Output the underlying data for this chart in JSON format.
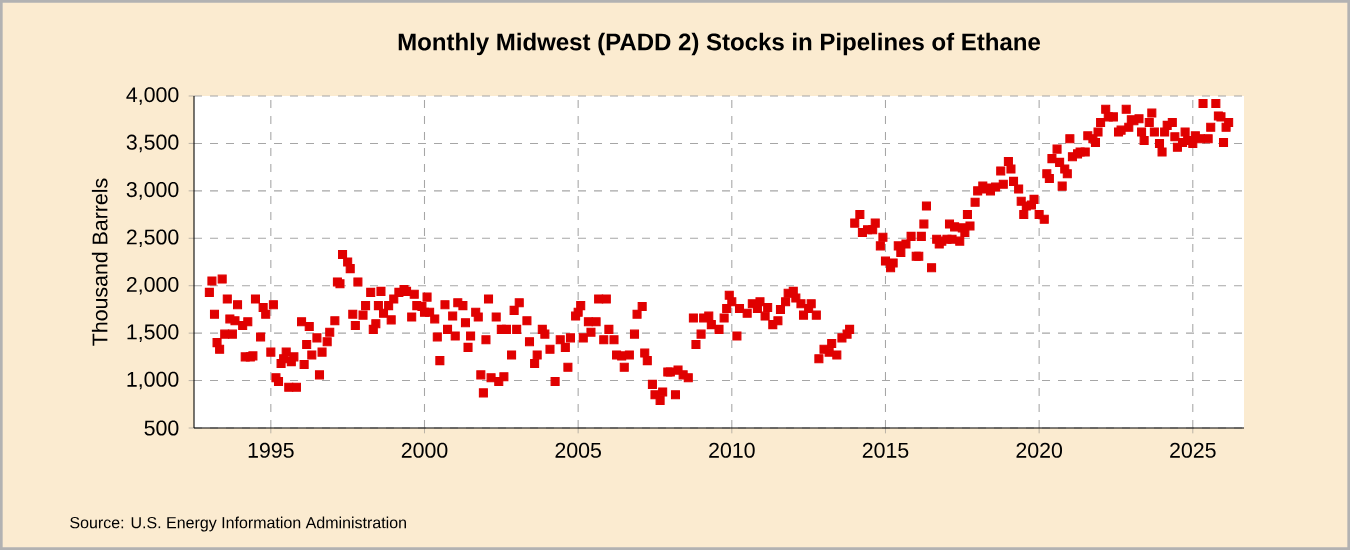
{
  "chart_data": {
    "type": "scatter",
    "title": "Monthly Midwest (PADD 2) Stocks in Pipelines of Ethane",
    "ylabel": "Thousand Barrels",
    "annotations": [
      "Source: U.S. Energy Information Administration"
    ],
    "marker": "square",
    "grid": true,
    "xlim": [
      "1992-07",
      "2026-09"
    ],
    "xticks": [
      "1995",
      "2000",
      "2005",
      "2010",
      "2015",
      "2020",
      "2025"
    ],
    "ylim": [
      500,
      4000
    ],
    "yticks": [
      {
        "value": 500,
        "label": "500"
      },
      {
        "value": 1000,
        "label": "1,000"
      },
      {
        "value": 1500,
        "label": "1,500"
      },
      {
        "value": 2000,
        "label": "2,000"
      },
      {
        "value": 2500,
        "label": "2,500"
      },
      {
        "value": 3000,
        "label": "3,000"
      },
      {
        "value": 3500,
        "label": "3,500"
      },
      {
        "value": 4000,
        "label": "4,000"
      }
    ],
    "series": [
      {
        "color": "#e00000",
        "x": [
          "1993-01",
          "1993-02",
          "1993-03",
          "1993-04",
          "1993-05",
          "1993-06",
          "1993-07",
          "1993-08",
          "1993-09",
          "1993-10",
          "1993-11",
          "1993-12",
          "1994-02",
          "1994-03",
          "1994-04",
          "1994-05",
          "1994-06",
          "1994-07",
          "1994-09",
          "1994-10",
          "1994-11",
          "1995-01",
          "1995-02",
          "1995-03",
          "1995-04",
          "1995-05",
          "1995-06",
          "1995-07",
          "1995-08",
          "1995-09",
          "1995-10",
          "1995-11",
          "1996-01",
          "1996-02",
          "1996-03",
          "1996-04",
          "1996-05",
          "1996-07",
          "1996-08",
          "1996-09",
          "1996-11",
          "1996-12",
          "1997-02",
          "1997-03",
          "1997-04",
          "1997-05",
          "1997-07",
          "1997-08",
          "1997-09",
          "1997-10",
          "1997-11",
          "1998-01",
          "1998-02",
          "1998-04",
          "1998-05",
          "1998-06",
          "1998-07",
          "1998-08",
          "1998-09",
          "1998-11",
          "1998-12",
          "1999-01",
          "1999-03",
          "1999-05",
          "1999-06",
          "1999-08",
          "1999-09",
          "1999-10",
          "1999-12",
          "2000-01",
          "2000-02",
          "2000-03",
          "2000-05",
          "2000-06",
          "2000-07",
          "2000-09",
          "2000-10",
          "2000-12",
          "2001-01",
          "2001-02",
          "2001-04",
          "2001-05",
          "2001-06",
          "2001-07",
          "2001-09",
          "2001-10",
          "2001-11",
          "2001-12",
          "2002-01",
          "2002-02",
          "2002-03",
          "2002-05",
          "2002-06",
          "2002-07",
          "2002-08",
          "2002-09",
          "2002-11",
          "2002-12",
          "2003-01",
          "2003-02",
          "2003-05",
          "2003-06",
          "2003-08",
          "2003-09",
          "2003-11",
          "2003-12",
          "2004-02",
          "2004-04",
          "2004-06",
          "2004-08",
          "2004-09",
          "2004-10",
          "2004-12",
          "2005-01",
          "2005-02",
          "2005-03",
          "2005-05",
          "2005-06",
          "2005-08",
          "2005-09",
          "2005-11",
          "2005-12",
          "2006-01",
          "2006-03",
          "2006-04",
          "2006-06",
          "2006-07",
          "2006-09",
          "2006-11",
          "2006-12",
          "2007-02",
          "2007-03",
          "2007-04",
          "2007-06",
          "2007-07",
          "2007-09",
          "2007-10",
          "2007-12",
          "2008-01",
          "2008-03",
          "2008-04",
          "2008-06",
          "2008-08",
          "2008-10",
          "2008-11",
          "2009-01",
          "2009-02",
          "2009-04",
          "2009-05",
          "2009-08",
          "2009-10",
          "2009-11",
          "2009-12",
          "2010-01",
          "2010-03",
          "2010-04",
          "2010-07",
          "2010-09",
          "2010-11",
          "2010-12",
          "2011-02",
          "2011-03",
          "2011-05",
          "2011-07",
          "2011-08",
          "2011-10",
          "2011-11",
          "2012-01",
          "2012-02",
          "2012-04",
          "2012-05",
          "2012-07",
          "2012-08",
          "2012-10",
          "2012-11",
          "2013-01",
          "2013-03",
          "2013-04",
          "2013-06",
          "2013-08",
          "2013-10",
          "2013-11",
          "2014-01",
          "2014-03",
          "2014-04",
          "2014-06",
          "2014-08",
          "2014-09",
          "2014-11",
          "2014-12",
          "2015-01",
          "2015-03",
          "2015-04",
          "2015-06",
          "2015-07",
          "2015-09",
          "2015-11",
          "2016-01",
          "2016-02",
          "2016-03",
          "2016-04",
          "2016-05",
          "2016-07",
          "2016-09",
          "2016-10",
          "2016-11",
          "2017-01",
          "2017-02",
          "2017-03",
          "2017-04",
          "2017-06",
          "2017-07",
          "2017-08",
          "2017-09",
          "2017-10",
          "2017-12",
          "2018-01",
          "2018-03",
          "2018-04",
          "2018-05",
          "2018-06",
          "2018-08",
          "2018-10",
          "2018-11",
          "2019-01",
          "2019-02",
          "2019-03",
          "2019-05",
          "2019-06",
          "2019-07",
          "2019-08",
          "2019-10",
          "2019-11",
          "2020-01",
          "2020-03",
          "2020-04",
          "2020-05",
          "2020-06",
          "2020-08",
          "2020-09",
          "2020-10",
          "2020-11",
          "2020-12",
          "2021-01",
          "2021-02",
          "2021-04",
          "2021-05",
          "2021-07",
          "2021-08",
          "2021-10",
          "2021-11",
          "2021-12",
          "2022-01",
          "2022-03",
          "2022-04",
          "2022-06",
          "2022-08",
          "2022-09",
          "2022-11",
          "2022-12",
          "2023-01",
          "2023-02",
          "2023-04",
          "2023-05",
          "2023-06",
          "2023-08",
          "2023-09",
          "2023-10",
          "2023-12",
          "2024-01",
          "2024-02",
          "2024-03",
          "2024-05",
          "2024-06",
          "2024-07",
          "2024-09",
          "2024-10",
          "2024-11",
          "2025-01",
          "2025-02",
          "2025-04",
          "2025-05",
          "2025-07",
          "2025-08",
          "2025-10",
          "2025-11",
          "2025-12",
          "2026-01",
          "2026-02",
          "2026-03"
        ],
        "values": [
          1930,
          2050,
          1700,
          1400,
          1330,
          2070,
          1490,
          1860,
          1650,
          1490,
          1630,
          1800,
          1580,
          1250,
          1620,
          1250,
          1260,
          1860,
          1460,
          1770,
          1700,
          1300,
          1800,
          1030,
          990,
          1180,
          1230,
          1300,
          930,
          1200,
          1250,
          930,
          1620,
          1170,
          1380,
          1570,
          1270,
          1450,
          1060,
          1300,
          1410,
          1510,
          1630,
          2040,
          2020,
          2330,
          2250,
          2180,
          1700,
          1580,
          2040,
          1690,
          1790,
          1930,
          1540,
          1600,
          1790,
          1940,
          1710,
          1790,
          1640,
          1860,
          1930,
          1960,
          1940,
          1670,
          1910,
          1790,
          1780,
          1720,
          1880,
          1720,
          1650,
          1460,
          1210,
          1800,
          1540,
          1680,
          1470,
          1820,
          1790,
          1610,
          1350,
          1470,
          1720,
          1670,
          1060,
          870,
          1430,
          1860,
          1030,
          1670,
          990,
          1540,
          1040,
          1540,
          1270,
          1740,
          1540,
          1820,
          1630,
          1410,
          1180,
          1270,
          1540,
          1490,
          1330,
          990,
          1430,
          1350,
          1140,
          1450,
          1680,
          1720,
          1790,
          1450,
          1620,
          1510,
          1620,
          1860,
          1430,
          1860,
          1540,
          1430,
          1270,
          1260,
          1140,
          1270,
          1490,
          1700,
          1780,
          1290,
          1210,
          960,
          850,
          790,
          880,
          1090,
          1090,
          850,
          1110,
          1060,
          1030,
          1660,
          1380,
          1490,
          1660,
          1680,
          1590,
          1540,
          1660,
          1760,
          1900,
          1830,
          1470,
          1760,
          1710,
          1810,
          1760,
          1830,
          1680,
          1770,
          1590,
          1630,
          1750,
          1830,
          1920,
          1940,
          1870,
          1810,
          1690,
          1760,
          1810,
          1690,
          1230,
          1330,
          1300,
          1390,
          1270,
          1450,
          1490,
          1540,
          2660,
          2750,
          2560,
          2590,
          2590,
          2660,
          2420,
          2510,
          2260,
          2190,
          2240,
          2420,
          2350,
          2440,
          2520,
          2310,
          2310,
          2520,
          2650,
          2840,
          2190,
          2490,
          2440,
          2470,
          2490,
          2650,
          2490,
          2620,
          2470,
          2610,
          2560,
          2750,
          2630,
          2880,
          3000,
          3050,
          3020,
          3030,
          3000,
          3040,
          3210,
          3070,
          3310,
          3230,
          3100,
          3020,
          2890,
          2750,
          2840,
          2850,
          2910,
          2750,
          2700,
          3180,
          3130,
          3340,
          3440,
          3300,
          3050,
          3230,
          3180,
          3550,
          3360,
          3390,
          3410,
          3410,
          3580,
          3550,
          3510,
          3620,
          3720,
          3860,
          3780,
          3780,
          3620,
          3640,
          3860,
          3670,
          3750,
          3740,
          3760,
          3620,
          3530,
          3720,
          3820,
          3620,
          3500,
          3410,
          3620,
          3690,
          3720,
          3570,
          3460,
          3510,
          3620,
          3530,
          3500,
          3580,
          3550,
          3920,
          3550,
          3670,
          3920,
          3790,
          3780,
          3510,
          3670,
          3720
        ]
      }
    ]
  }
}
